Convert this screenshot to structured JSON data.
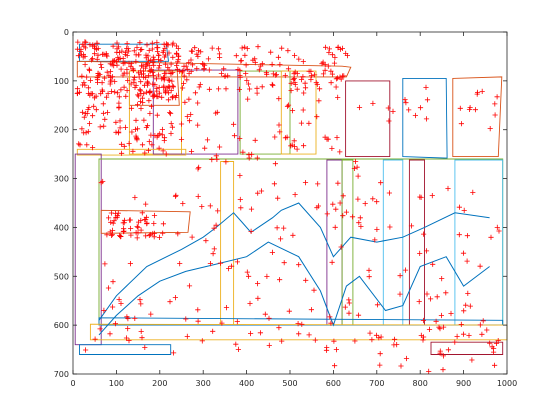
{
  "chart_data": {
    "type": "scatter",
    "x_ticks": [
      0,
      100,
      200,
      300,
      400,
      500,
      600,
      700,
      800,
      900,
      1000
    ],
    "y_ticks": [
      0,
      100,
      200,
      300,
      400,
      500,
      600,
      700
    ],
    "xlim": [
      0,
      1000
    ],
    "ylim": [
      0,
      700
    ],
    "y_reversed": true,
    "grid": false,
    "box": true,
    "colors": {
      "marker": "#ff0000",
      "axis": "#262626",
      "blue": "#0072bd",
      "orange": "#d95319",
      "yellow": "#edb120",
      "purple": "#7e2f8e",
      "green": "#77ac30",
      "cyan": "#4dbeee",
      "maroon": "#a2142f"
    },
    "points": {
      "clusters": [
        {
          "x": [
            10,
            240
          ],
          "y": [
            20,
            135
          ],
          "n": 260
        },
        {
          "x": [
            10,
            230
          ],
          "y": [
            130,
            250
          ],
          "n": 90
        },
        {
          "x": [
            240,
            640
          ],
          "y": [
            30,
            120
          ],
          "n": 140
        },
        {
          "x": [
            250,
            630
          ],
          "y": [
            110,
            260
          ],
          "n": 60
        },
        {
          "x": [
            650,
            980
          ],
          "y": [
            110,
            200
          ],
          "n": 25
        },
        {
          "x": [
            60,
            520
          ],
          "y": [
            260,
            620
          ],
          "n": 90
        },
        {
          "x": [
            80,
            190
          ],
          "y": [
            370,
            420
          ],
          "n": 45
        },
        {
          "x": [
            520,
            990
          ],
          "y": [
            260,
            700
          ],
          "n": 110
        },
        {
          "x": [
            20,
            980
          ],
          "y": [
            580,
            660
          ],
          "n": 45
        }
      ],
      "seed": 7
    },
    "polygons": [
      {
        "color": "blue",
        "points": [
          [
            15,
            25
          ],
          [
            215,
            25
          ],
          [
            220,
            60
          ],
          [
            15,
            60
          ]
        ]
      },
      {
        "color": "orange",
        "points": [
          [
            10,
            60
          ],
          [
            620,
            70
          ],
          [
            640,
            72
          ],
          [
            630,
            92
          ],
          [
            10,
            92
          ]
        ]
      },
      {
        "color": "orange",
        "points": [
          [
            130,
            80
          ],
          [
            240,
            80
          ],
          [
            245,
            150
          ],
          [
            130,
            150
          ]
        ]
      },
      {
        "color": "yellow",
        "points": [
          [
            130,
            80
          ],
          [
            130,
            250
          ],
          [
            250,
            250
          ],
          [
            250,
            80
          ]
        ]
      },
      {
        "color": "purple",
        "points": [
          [
            185,
            78
          ],
          [
            380,
            78
          ],
          [
            380,
            250
          ],
          [
            185,
            250
          ]
        ]
      },
      {
        "color": "green",
        "points": [
          [
            385,
            80
          ],
          [
            500,
            80
          ],
          [
            500,
            250
          ],
          [
            385,
            250
          ]
        ]
      },
      {
        "color": "yellow",
        "points": [
          [
            480,
            80
          ],
          [
            560,
            80
          ],
          [
            560,
            250
          ],
          [
            480,
            250
          ]
        ]
      },
      {
        "color": "maroon",
        "points": [
          [
            628,
            100
          ],
          [
            730,
            100
          ],
          [
            730,
            255
          ],
          [
            628,
            255
          ]
        ]
      },
      {
        "color": "blue",
        "points": [
          [
            760,
            95
          ],
          [
            860,
            95
          ],
          [
            862,
            258
          ],
          [
            760,
            255
          ]
        ]
      },
      {
        "color": "orange",
        "points": [
          [
            875,
            95
          ],
          [
            988,
            92
          ],
          [
            980,
            255
          ],
          [
            875,
            255
          ]
        ]
      },
      {
        "color": "yellow",
        "points": [
          [
            10,
            240
          ],
          [
            260,
            240
          ],
          [
            260,
            252
          ],
          [
            10,
            252
          ]
        ]
      },
      {
        "color": "purple",
        "points": [
          [
            5,
            250
          ],
          [
            65,
            250
          ],
          [
            65,
            640
          ],
          [
            5,
            640
          ]
        ]
      },
      {
        "color": "green",
        "points": [
          [
            60,
            260
          ],
          [
            990,
            260
          ],
          [
            990,
            600
          ],
          [
            60,
            600
          ]
        ]
      },
      {
        "color": "orange",
        "points": [
          [
            65,
            365
          ],
          [
            270,
            368
          ],
          [
            265,
            410
          ],
          [
            65,
            412
          ]
        ]
      },
      {
        "color": "yellow",
        "points": [
          [
            340,
            265
          ],
          [
            370,
            265
          ],
          [
            370,
            600
          ],
          [
            340,
            600
          ]
        ]
      },
      {
        "color": "purple",
        "points": [
          [
            585,
            262
          ],
          [
            620,
            262
          ],
          [
            620,
            600
          ],
          [
            585,
            600
          ]
        ]
      },
      {
        "color": "green",
        "points": [
          [
            620,
            262
          ],
          [
            645,
            262
          ],
          [
            645,
            600
          ],
          [
            620,
            600
          ]
        ]
      },
      {
        "color": "cyan",
        "points": [
          [
            715,
            262
          ],
          [
            760,
            262
          ],
          [
            760,
            600
          ],
          [
            715,
            600
          ]
        ]
      },
      {
        "color": "maroon",
        "points": [
          [
            775,
            262
          ],
          [
            810,
            262
          ],
          [
            810,
            600
          ],
          [
            775,
            600
          ]
        ]
      },
      {
        "color": "cyan",
        "points": [
          [
            880,
            262
          ],
          [
            990,
            262
          ],
          [
            990,
            600
          ],
          [
            880,
            600
          ]
        ]
      },
      {
        "color": "blue",
        "points": [
          [
            60,
            585
          ],
          [
            990,
            590
          ],
          [
            990,
            600
          ],
          [
            60,
            600
          ]
        ]
      },
      {
        "color": "yellow",
        "points": [
          [
            40,
            598
          ],
          [
            1000,
            600
          ],
          [
            1000,
            630
          ],
          [
            40,
            630
          ]
        ]
      },
      {
        "color": "blue",
        "points": [
          [
            15,
            640
          ],
          [
            225,
            640
          ],
          [
            225,
            660
          ],
          [
            15,
            660
          ]
        ]
      },
      {
        "color": "maroon",
        "points": [
          [
            825,
            635
          ],
          [
            990,
            635
          ],
          [
            990,
            660
          ],
          [
            825,
            660
          ]
        ]
      }
    ],
    "polylines": [
      {
        "color": "blue",
        "points": [
          [
            60,
            590
          ],
          [
            100,
            540
          ],
          [
            170,
            480
          ],
          [
            250,
            445
          ],
          [
            300,
            420
          ],
          [
            330,
            400
          ],
          [
            370,
            370
          ],
          [
            390,
            390
          ],
          [
            410,
            410
          ],
          [
            460,
            380
          ],
          [
            480,
            365
          ],
          [
            520,
            350
          ],
          [
            570,
            400
          ],
          [
            600,
            460
          ],
          [
            640,
            420
          ],
          [
            700,
            430
          ],
          [
            760,
            420
          ],
          [
            810,
            400
          ],
          [
            880,
            370
          ],
          [
            960,
            380
          ]
        ]
      },
      {
        "color": "blue",
        "points": [
          [
            60,
            620
          ],
          [
            100,
            580
          ],
          [
            150,
            540
          ],
          [
            200,
            510
          ],
          [
            260,
            490
          ],
          [
            330,
            475
          ],
          [
            400,
            460
          ],
          [
            450,
            430
          ],
          [
            520,
            460
          ],
          [
            570,
            530
          ],
          [
            600,
            600
          ],
          [
            630,
            520
          ],
          [
            660,
            500
          ],
          [
            720,
            570
          ],
          [
            760,
            560
          ],
          [
            800,
            480
          ],
          [
            860,
            460
          ],
          [
            900,
            520
          ],
          [
            960,
            480
          ]
        ]
      }
    ]
  }
}
